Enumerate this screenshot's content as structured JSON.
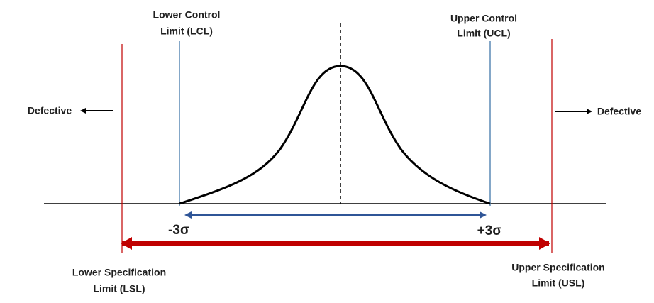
{
  "labels": {
    "lcl": [
      "Lower Control",
      "Limit (LCL)"
    ],
    "ucl": [
      "Upper Control",
      "Limit (UCL)"
    ],
    "lsl": [
      "Lower Specification",
      "Limit (LSL)"
    ],
    "usl": [
      "Upper Specification",
      "Limit (USL)"
    ],
    "defective_left": "Defective",
    "defective_right": "Defective",
    "minus_sigma": "-3σ",
    "plus_sigma": "+3σ"
  }
}
